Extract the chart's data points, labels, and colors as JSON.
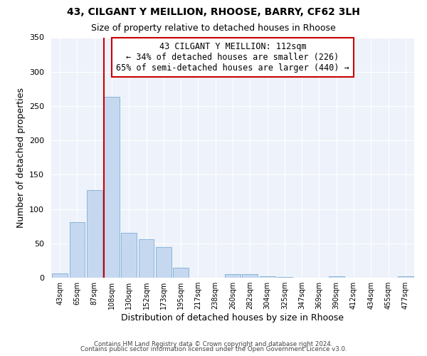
{
  "title": "43, CILGANT Y MEILLION, RHOOSE, BARRY, CF62 3LH",
  "subtitle": "Size of property relative to detached houses in Rhoose",
  "xlabel": "Distribution of detached houses by size in Rhoose",
  "ylabel": "Number of detached properties",
  "bar_labels": [
    "43sqm",
    "65sqm",
    "87sqm",
    "108sqm",
    "130sqm",
    "152sqm",
    "173sqm",
    "195sqm",
    "217sqm",
    "238sqm",
    "260sqm",
    "282sqm",
    "304sqm",
    "325sqm",
    "347sqm",
    "369sqm",
    "390sqm",
    "412sqm",
    "434sqm",
    "455sqm",
    "477sqm"
  ],
  "bar_values": [
    6,
    81,
    128,
    263,
    65,
    56,
    45,
    15,
    0,
    0,
    5,
    5,
    2,
    1,
    0,
    0,
    2,
    0,
    0,
    0,
    2
  ],
  "bar_color": "#c5d8f0",
  "bar_edge_color": "#7bafd4",
  "vline_color": "#cc0000",
  "vline_x": 3,
  "annotation_line1": "43 CILGANT Y MEILLION: 112sqm",
  "annotation_line2": "← 34% of detached houses are smaller (226)",
  "annotation_line3": "65% of semi-detached houses are larger (440) →",
  "annotation_box_color": "#cc0000",
  "ylim": [
    0,
    350
  ],
  "yticks": [
    0,
    50,
    100,
    150,
    200,
    250,
    300,
    350
  ],
  "bg_color": "#eef2fa",
  "grid_color": "#ffffff",
  "footer1": "Contains HM Land Registry data © Crown copyright and database right 2024.",
  "footer2": "Contains public sector information licensed under the Open Government Licence v3.0."
}
